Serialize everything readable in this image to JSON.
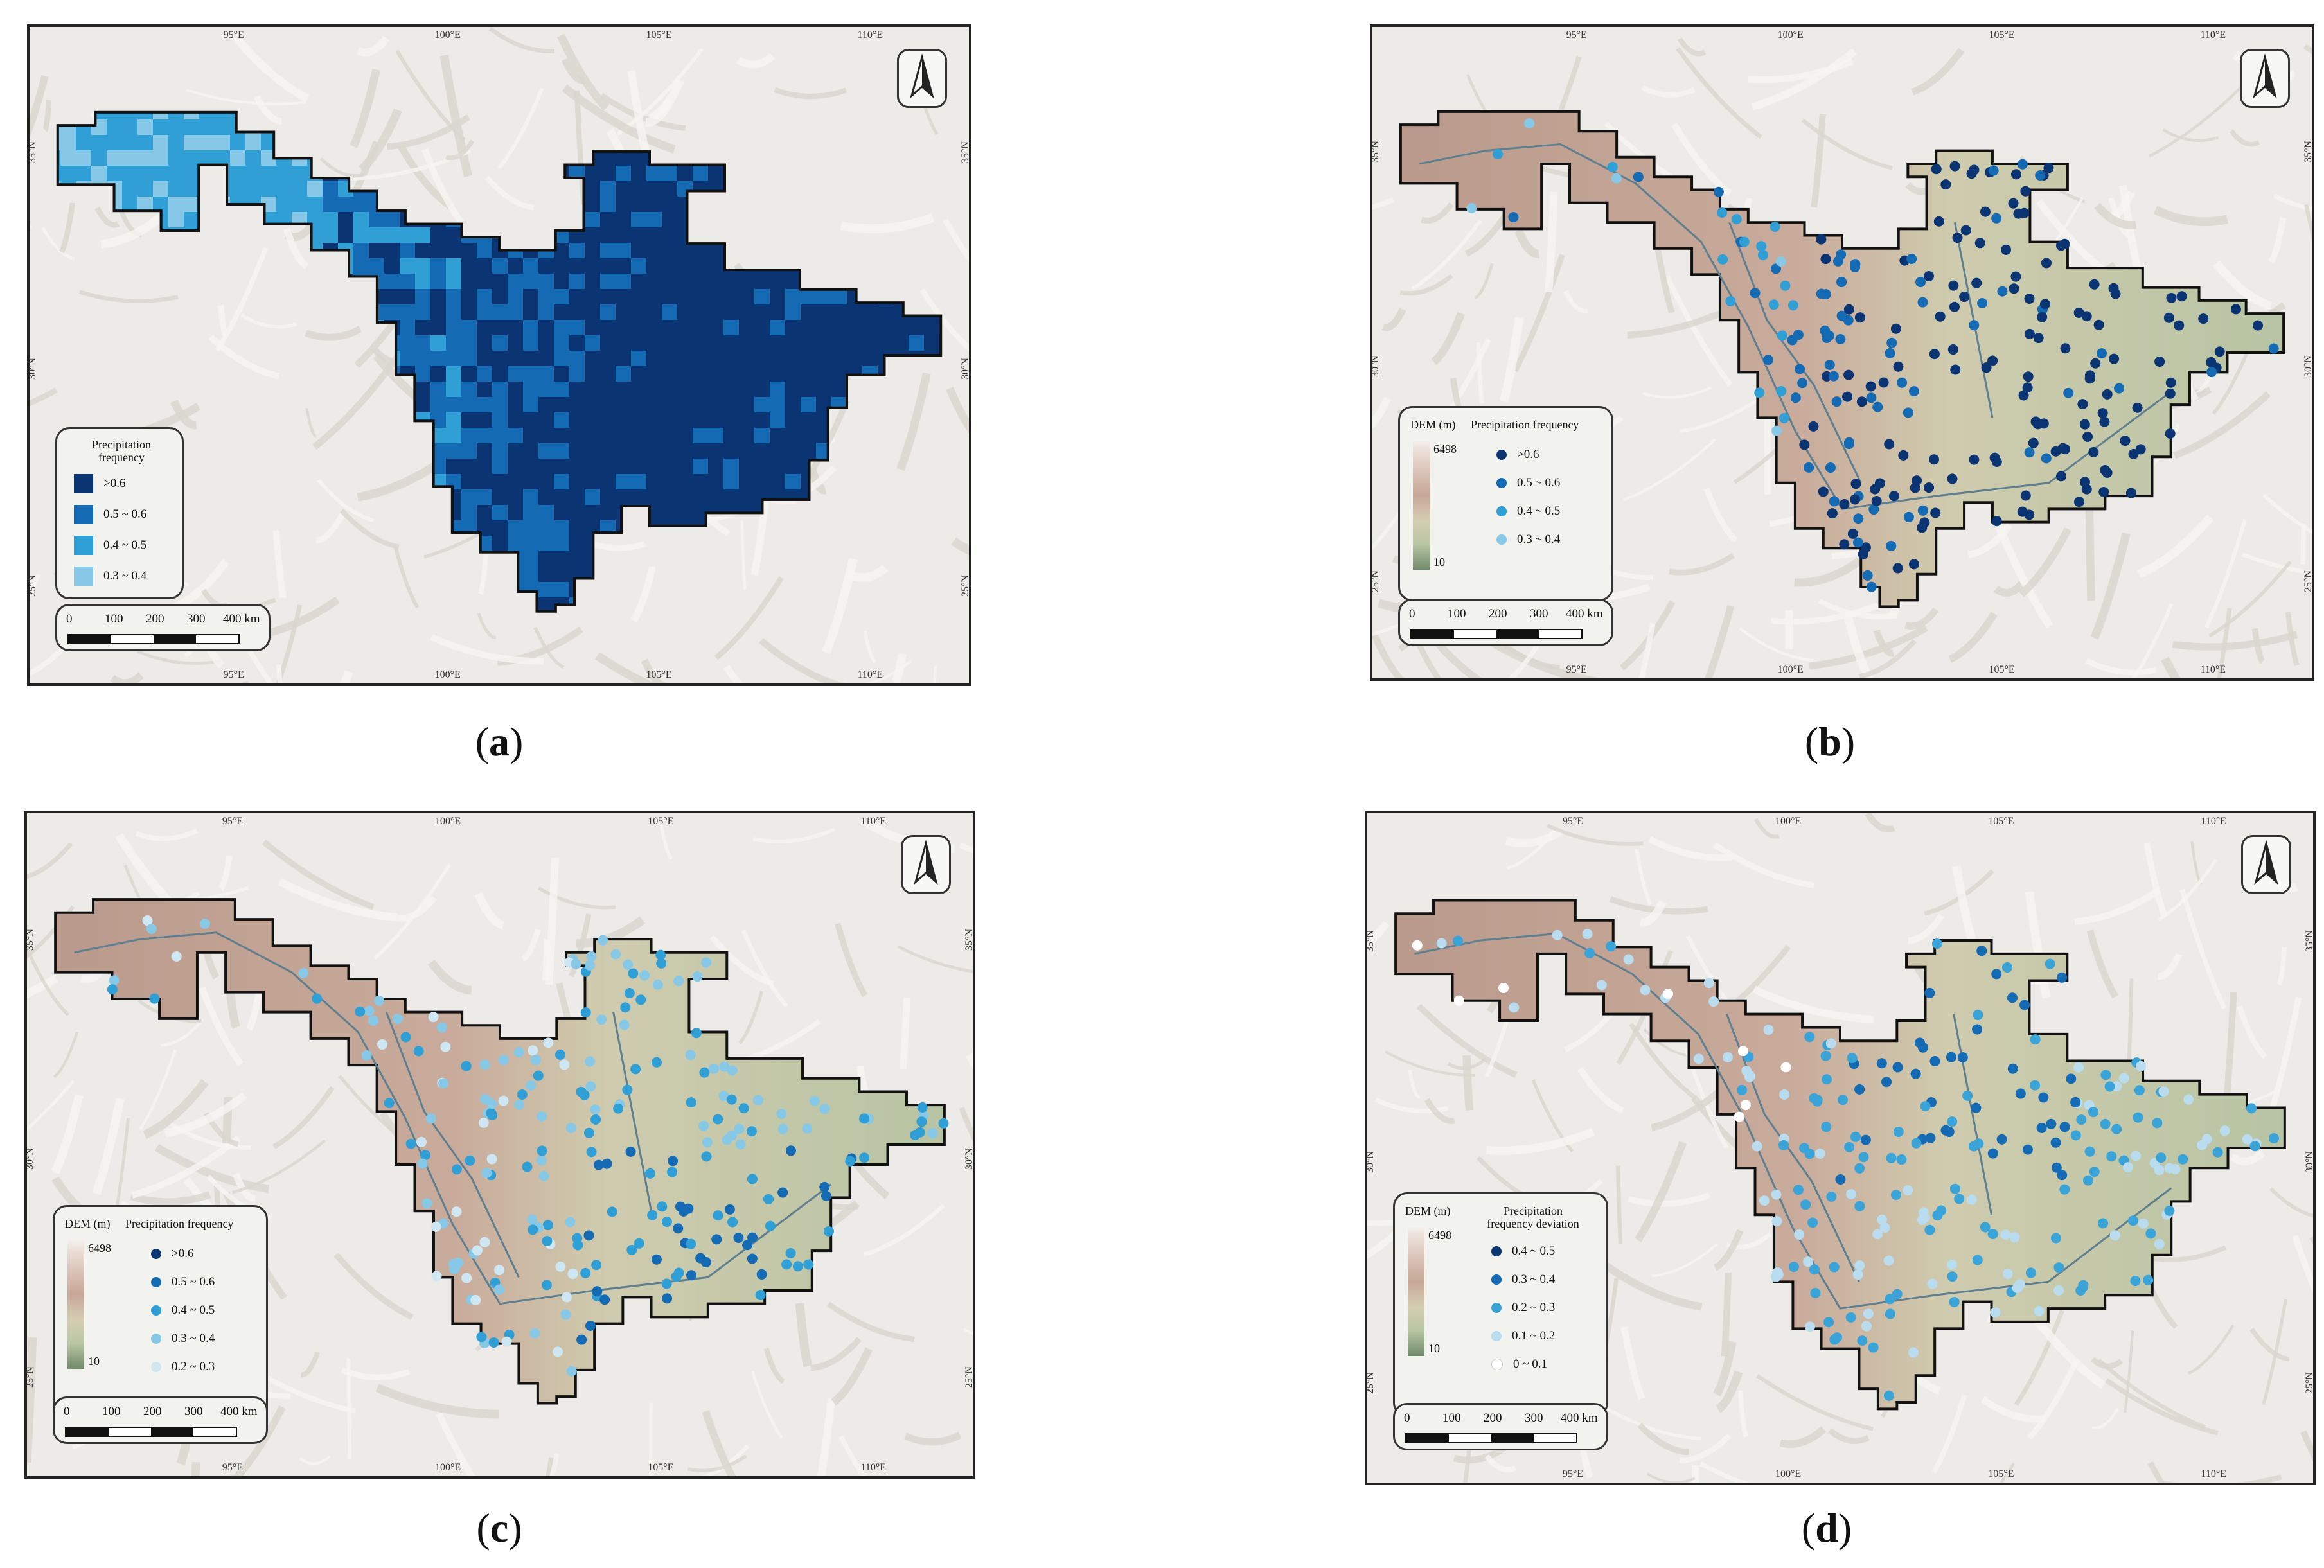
{
  "panels": [
    {
      "id": "a",
      "caption_label": "a",
      "caption_open": "(",
      "caption_close": ")",
      "legend": {
        "title_line1": "Precipitation",
        "title_line2": "frequency",
        "items": [
          {
            "label": ">0.6",
            "color": "#0b3472"
          },
          {
            "label": "0.5 ~ 0.6",
            "color": "#156bb3"
          },
          {
            "label": "0.4 ~ 0.5",
            "color": "#2f9fd6"
          },
          {
            "label": "0.3 ~ 0.4",
            "color": "#86c8e6"
          }
        ]
      },
      "scale": {
        "labels": [
          "0",
          "100",
          "200",
          "300",
          "400 km"
        ]
      },
      "lon_ticks": [
        "95°E",
        "100°E",
        "105°E",
        "110°E"
      ],
      "lat_ticks": [
        "35°N",
        "30°N",
        "25°N"
      ]
    },
    {
      "id": "b",
      "caption_label": "b",
      "caption_open": "(",
      "caption_close": ")",
      "legend": {
        "dem_title": "DEM (m)",
        "dem_max": "6498",
        "dem_min": "10",
        "title": "Precipitation frequency",
        "items": [
          {
            "label": ">0.6",
            "color": "#0b3472"
          },
          {
            "label": "0.5 ~ 0.6",
            "color": "#156bb3"
          },
          {
            "label": "0.4 ~ 0.5",
            "color": "#2f9fd6"
          },
          {
            "label": "0.3 ~ 0.4",
            "color": "#86c8e6"
          }
        ]
      },
      "scale": {
        "labels": [
          "0",
          "100",
          "200",
          "300",
          "400 km"
        ]
      },
      "lon_ticks": [
        "95°E",
        "100°E",
        "105°E",
        "110°E"
      ],
      "lat_ticks": [
        "35°N",
        "30°N",
        "25°N"
      ]
    },
    {
      "id": "c",
      "caption_label": "c",
      "caption_open": "(",
      "caption_close": ")",
      "legend": {
        "dem_title": "DEM (m)",
        "dem_max": "6498",
        "dem_min": "10",
        "title": "Precipitation frequency",
        "items": [
          {
            "label": ">0.6",
            "color": "#0b3472"
          },
          {
            "label": "0.5 ~ 0.6",
            "color": "#156bb3"
          },
          {
            "label": "0.4 ~ 0.5",
            "color": "#2f9fd6"
          },
          {
            "label": "0.3 ~ 0.4",
            "color": "#86c8e6"
          },
          {
            "label": "0.2 ~ 0.3",
            "color": "#cfe6f3"
          }
        ]
      },
      "scale": {
        "labels": [
          "0",
          "100",
          "200",
          "300",
          "400 km"
        ]
      },
      "lon_ticks": [
        "95°E",
        "100°E",
        "105°E",
        "110°E"
      ],
      "lat_ticks": [
        "35°N",
        "30°N",
        "25°N"
      ]
    },
    {
      "id": "d",
      "caption_label": "d",
      "caption_open": "(",
      "caption_close": ")",
      "legend": {
        "dem_title": "DEM (m)",
        "dem_max": "6498",
        "dem_min": "10",
        "title_line1": "Precipitation",
        "title_line2": "frequency deviation",
        "items": [
          {
            "label": "0.4 ~ 0.5",
            "color": "#0b3472"
          },
          {
            "label": "0.3 ~ 0.4",
            "color": "#156bb3"
          },
          {
            "label": "0.2 ~ 0.3",
            "color": "#3aa3d8"
          },
          {
            "label": "0.1 ~ 0.2",
            "color": "#b9dcef"
          },
          {
            "label": "0 ~ 0.1",
            "color": "#ffffff"
          }
        ]
      },
      "scale": {
        "labels": [
          "0",
          "100",
          "200",
          "300",
          "400 km"
        ]
      },
      "lon_ticks": [
        "95°E",
        "100°E",
        "105°E",
        "110°E"
      ],
      "lat_ticks": [
        "35°N",
        "30°N",
        "25°N"
      ]
    }
  ]
}
